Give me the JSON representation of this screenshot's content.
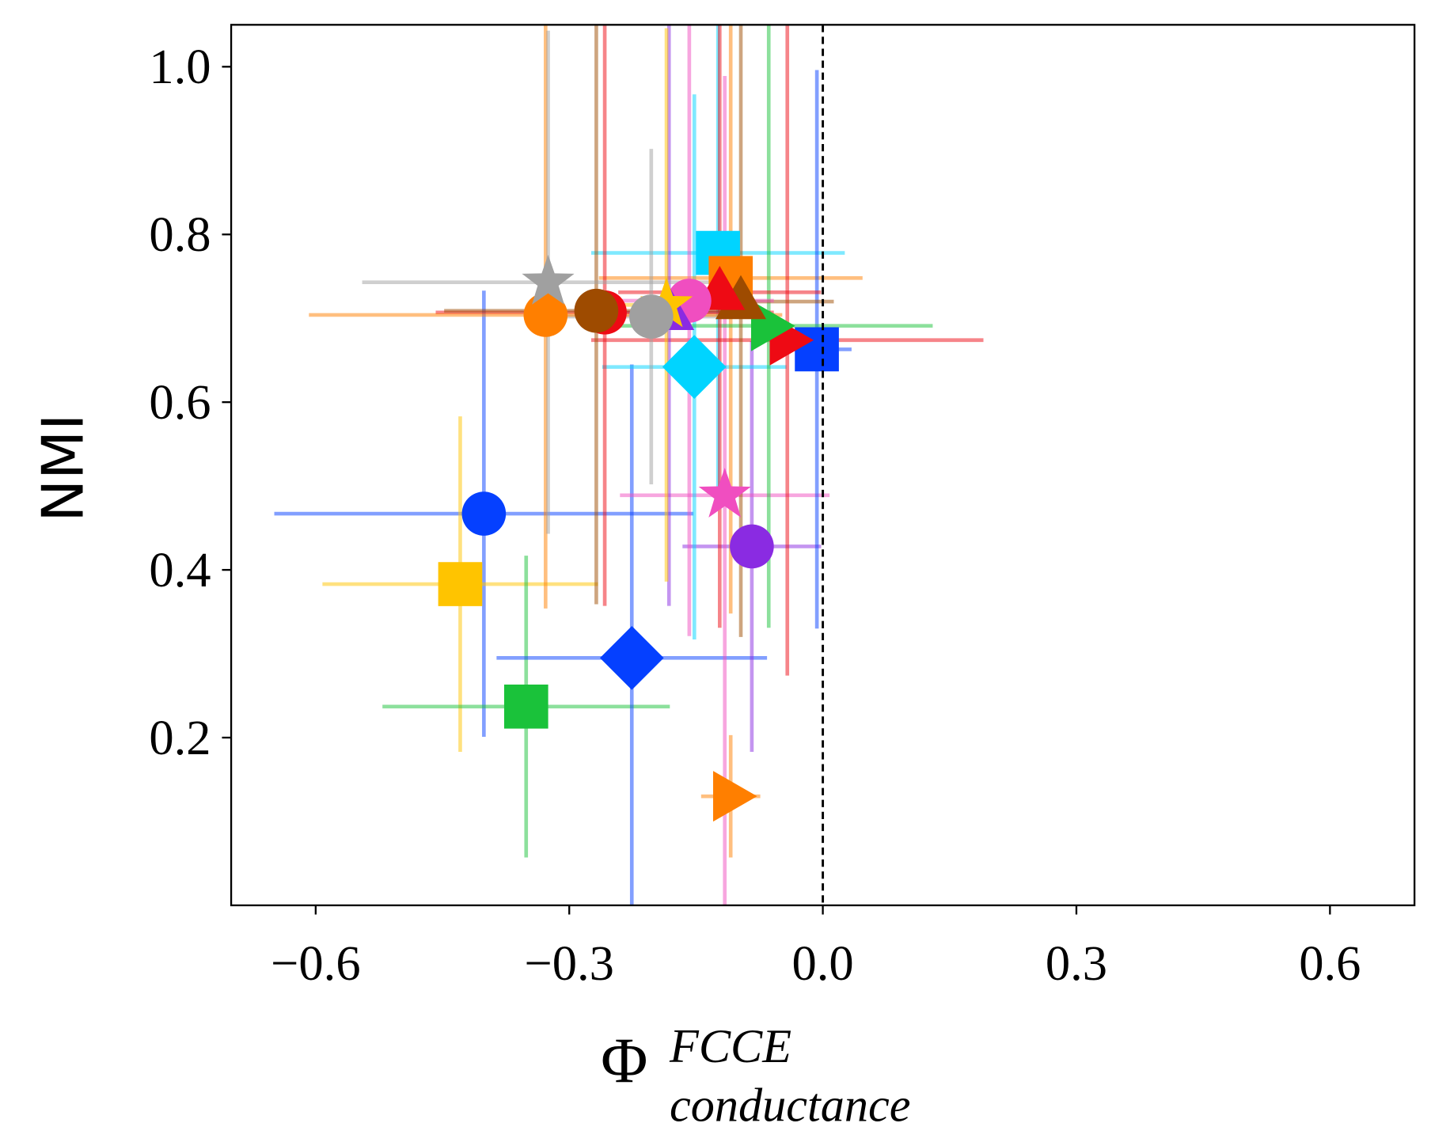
{
  "chart_data": {
    "type": "errorbar-scatter",
    "ylabel": "NMI",
    "xlabel": {
      "base": "Φ",
      "sup": "FCCE",
      "sub": "conductance"
    },
    "xlim": [
      -0.7,
      0.7
    ],
    "ylim": [
      0,
      1.05
    ],
    "xticks": [
      {
        "value": -0.6,
        "label": "−0.6"
      },
      {
        "value": -0.3,
        "label": "−0.3"
      },
      {
        "value": 0,
        "label": "0.0"
      },
      0.3,
      0.6
    ],
    "yticks": [
      0.2,
      0.4,
      0.6,
      0.8,
      {
        "value": 1,
        "label": "1.0"
      }
    ],
    "vline": 0,
    "points": [
      {
        "marker": "circle",
        "color": "#0540ff",
        "x": -0.401,
        "y": 0.467,
        "xerr": 0.248,
        "yerr": 0.266
      },
      {
        "marker": "square",
        "color": "#ffc400",
        "x": -0.429,
        "y": 0.383,
        "xerr": 0.163,
        "yerr": 0.2
      },
      {
        "marker": "square",
        "color": "#1ac23a",
        "x": -0.351,
        "y": 0.237,
        "xerr": 0.17,
        "yerr": 0.18
      },
      {
        "marker": "diamond",
        "color": "#0540ff",
        "x": -0.226,
        "y": 0.295,
        "xerr": 0.16,
        "yerr": 0.35
      },
      {
        "marker": "triangle-right",
        "color": "#ff7f00",
        "x": -0.109,
        "y": 0.13,
        "xerr": 0.035,
        "yerr": 0.073
      },
      {
        "marker": "circle",
        "color": "#8a2be2",
        "x": -0.084,
        "y": 0.428,
        "xerr": 0.082,
        "yerr": 0.245
      },
      {
        "marker": "star",
        "color": "#f04ec0",
        "x": -0.116,
        "y": 0.489,
        "xerr": 0.124,
        "yerr": 0.5
      },
      {
        "marker": "diamond",
        "color": "#00d4ff",
        "x": -0.152,
        "y": 0.642,
        "xerr": 0.109,
        "yerr": 0.325
      },
      {
        "marker": "square",
        "color": "#00d4ff",
        "x": -0.124,
        "y": 0.778,
        "xerr": 0.15,
        "yerr": 0.3
      },
      {
        "marker": "square",
        "color": "#ff7f00",
        "x": -0.109,
        "y": 0.748,
        "xerr": 0.156,
        "yerr": 0.4
      },
      {
        "marker": "square",
        "color": "#0540ff",
        "x": -0.007,
        "y": 0.663,
        "xerr": 0.041,
        "yerr": 0.333
      },
      {
        "marker": "triangle-right",
        "color": "#ee0a14",
        "x": -0.042,
        "y": 0.674,
        "xerr": 0.232,
        "yerr": 0.4
      },
      {
        "marker": "triangle-right",
        "color": "#1ac23a",
        "x": -0.064,
        "y": 0.691,
        "xerr": 0.194,
        "yerr": 0.36
      },
      {
        "marker": "triangle-up",
        "color": "#9e4b00",
        "x": -0.097,
        "y": 0.72,
        "xerr": 0.11,
        "yerr": 0.4
      },
      {
        "marker": "triangle-up",
        "color": "#ee0a14",
        "x": -0.122,
        "y": 0.731,
        "xerr": 0.12,
        "yerr": 0.4
      },
      {
        "marker": "circle",
        "color": "#f04ec0",
        "x": -0.158,
        "y": 0.721,
        "xerr": 0.1,
        "yerr": 0.4
      },
      {
        "marker": "triangle-up",
        "color": "#8a2be2",
        "x": -0.182,
        "y": 0.707,
        "xerr": 0.1,
        "yerr": 0.35
      },
      {
        "marker": "star",
        "color": "#ffc400",
        "x": -0.185,
        "y": 0.716,
        "xerr": 0.08,
        "yerr": 0.33
      },
      {
        "marker": "circle",
        "color": "#a0a0a0",
        "x": -0.203,
        "y": 0.702,
        "xerr": 0.1,
        "yerr": 0.2
      },
      {
        "marker": "circle",
        "color": "#ee0a14",
        "x": -0.258,
        "y": 0.707,
        "xerr": 0.2,
        "yerr": 0.35
      },
      {
        "marker": "circle",
        "color": "#9e4b00",
        "x": -0.268,
        "y": 0.709,
        "xerr": 0.18,
        "yerr": 0.35
      },
      {
        "marker": "circle",
        "color": "#ff7f00",
        "x": -0.328,
        "y": 0.704,
        "xerr": 0.28,
        "yerr": 0.35
      },
      {
        "marker": "star",
        "color": "#a0a0a0",
        "x": -0.325,
        "y": 0.743,
        "xerr": 0.22,
        "yerr": 0.3
      }
    ]
  }
}
